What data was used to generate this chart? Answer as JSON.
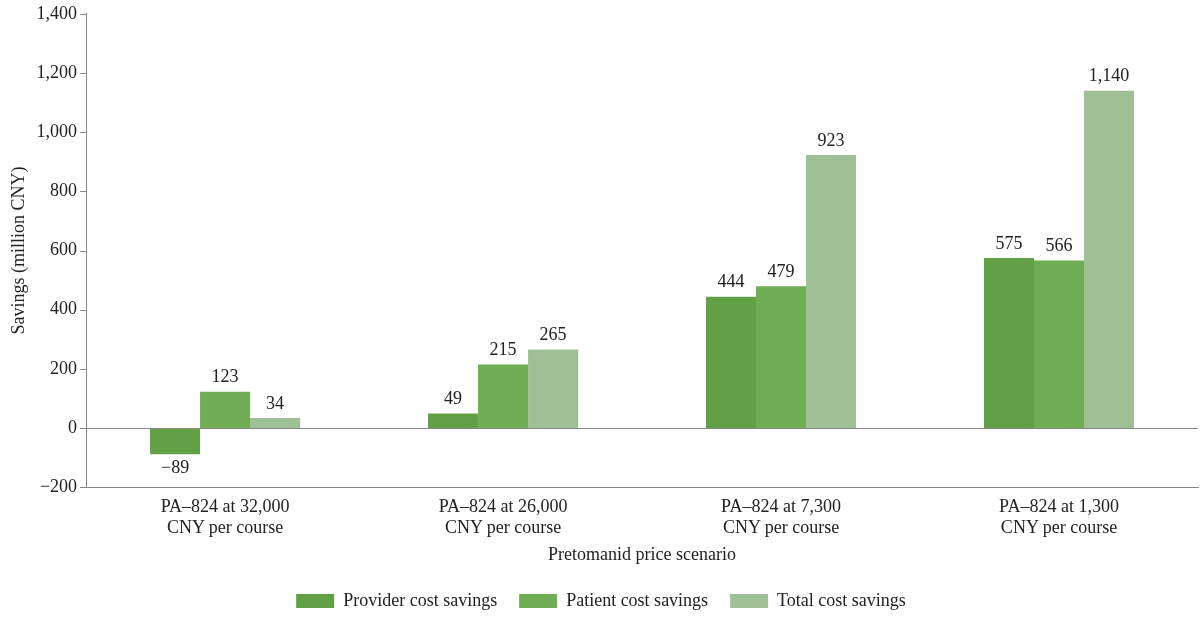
{
  "chart_data": {
    "type": "bar",
    "xlabel": "Pretomanid price scenario",
    "ylabel": "Savings (million CNY)",
    "categories": [
      "PA–824 at 32,000 CNY per course",
      "PA–824 at 26,000 CNY per course",
      "PA–824 at 7,300 CNY per course",
      "PA–824 at 1,300 CNY per course"
    ],
    "series": [
      {
        "name": "Provider cost savings",
        "color": "#62a046",
        "values": [
          -89,
          49,
          444,
          575
        ],
        "value_labels": [
          "−89",
          "49",
          "444",
          "575"
        ]
      },
      {
        "name": "Patient cost savings",
        "color": "#70ad55",
        "values": [
          123,
          215,
          479,
          566
        ],
        "value_labels": [
          "123",
          "215",
          "479",
          "566"
        ]
      },
      {
        "name": "Total cost savings",
        "color": "#9fbf97",
        "values": [
          34,
          265,
          923,
          1140
        ],
        "value_labels": [
          "34",
          "265",
          "923",
          "1,140"
        ]
      }
    ],
    "ylim": [
      -200,
      1400
    ],
    "yticks": [
      {
        "value": -200,
        "label": "−200"
      },
      0,
      200,
      400,
      600,
      800,
      {
        "value": 1000,
        "label": "1,000"
      },
      {
        "value": 1200,
        "label": "1,200"
      },
      {
        "value": 1400,
        "label": "1,400"
      }
    ],
    "legend": "bottom"
  }
}
